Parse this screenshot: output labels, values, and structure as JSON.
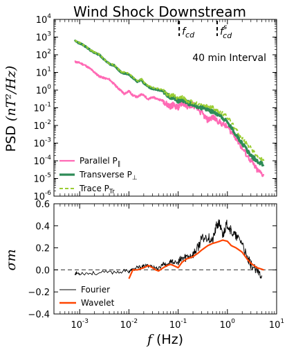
{
  "title": "Wind Shock Downstream",
  "colors": {
    "parallel": "#ff69b4",
    "transverse": "#2e8b57",
    "trace": "#9acd32",
    "fourier": "#000000",
    "wavelet": "#ff4500",
    "zero_line": "#555555"
  },
  "top_panel": {
    "ylabel": "PSD (nT²/Hz)",
    "ylabel_prefix": "PSD ",
    "ylabel_math": "(nT²/Hz)",
    "annotation": "40 min Interval",
    "markers": [
      {
        "label": "f_cd",
        "text": "f",
        "sub": "cd",
        "sup": "",
        "x": 0.105
      },
      {
        "label": "f^s_cd",
        "text": "f",
        "sub": "cd",
        "sup": "s",
        "x": 0.62
      }
    ],
    "yticks": [
      {
        "base": "10",
        "exp": "4"
      },
      {
        "base": "10",
        "exp": "3"
      },
      {
        "base": "10",
        "exp": "2"
      },
      {
        "base": "10",
        "exp": "1"
      },
      {
        "base": "10",
        "exp": "0"
      },
      {
        "base": "10",
        "exp": "-1"
      },
      {
        "base": "10",
        "exp": "-2"
      },
      {
        "base": "10",
        "exp": "-3"
      },
      {
        "base": "10",
        "exp": "-4"
      },
      {
        "base": "10",
        "exp": "-5"
      },
      {
        "base": "10",
        "exp": "-6"
      }
    ],
    "legend": [
      {
        "key": "parallel",
        "label": "Parallel P",
        "sub": "∥"
      },
      {
        "key": "transverse",
        "label": "Transverse P",
        "sub": "⊥"
      },
      {
        "key": "trace",
        "label": "Trace P",
        "sub": "Tr"
      }
    ]
  },
  "bottom_panel": {
    "ylabel": "σm",
    "yticks": [
      "0.6",
      "0.4",
      "0.2",
      "0.0",
      "−0.2",
      "−0.4"
    ],
    "legend": [
      {
        "key": "fourier",
        "label": "Fourier"
      },
      {
        "key": "wavelet",
        "label": "Wavelet"
      }
    ]
  },
  "xaxis": {
    "label_math": "f",
    "label_text": " (Hz)",
    "xticks": [
      {
        "base": "10",
        "exp": "-3"
      },
      {
        "base": "10",
        "exp": "-2"
      },
      {
        "base": "10",
        "exp": "-1"
      },
      {
        "base": "10",
        "exp": "0"
      },
      {
        "base": "10",
        "exp": "1"
      }
    ]
  },
  "chart_data": [
    {
      "type": "line",
      "title": "Wind Shock Downstream",
      "xlabel": "f (Hz)",
      "ylabel": "PSD (nT²/Hz)",
      "xscale": "log",
      "yscale": "log",
      "xlim": [
        0.0003,
        10
      ],
      "ylim": [
        1e-06,
        10000
      ],
      "legend_position": "lower-left",
      "series": [
        {
          "name": "Parallel P∥",
          "x": [
            0.0008,
            0.001,
            0.0013,
            0.0017,
            0.002,
            0.0025,
            0.003,
            0.004,
            0.005,
            0.006,
            0.007,
            0.008,
            0.01,
            0.012,
            0.015,
            0.018,
            0.02,
            0.025,
            0.03,
            0.04,
            0.05,
            0.06,
            0.07,
            0.08,
            0.1,
            0.12,
            0.15,
            0.2,
            0.3,
            0.4,
            0.5,
            0.7,
            1.0,
            1.5,
            2.0,
            3.0,
            4.0,
            5.5
          ],
          "y": [
            40,
            35,
            25,
            15,
            10,
            6,
            5,
            4,
            2.2,
            1.3,
            0.9,
            0.6,
            0.9,
            0.5,
            0.4,
            0.6,
            0.5,
            0.3,
            0.4,
            0.3,
            0.25,
            0.15,
            0.12,
            0.15,
            0.1,
            0.2,
            0.12,
            0.15,
            0.05,
            0.02,
            0.03,
            0.015,
            0.008,
            0.002,
            0.0005,
            0.0001,
            3e-05,
            1.5e-05
          ]
        },
        {
          "name": "Transverse P⊥",
          "x": [
            0.0008,
            0.001,
            0.0013,
            0.0017,
            0.002,
            0.0025,
            0.003,
            0.004,
            0.005,
            0.006,
            0.007,
            0.008,
            0.01,
            0.012,
            0.015,
            0.018,
            0.02,
            0.025,
            0.03,
            0.04,
            0.05,
            0.06,
            0.07,
            0.08,
            0.1,
            0.12,
            0.15,
            0.2,
            0.3,
            0.4,
            0.5,
            0.7,
            1.0,
            1.5,
            2.0,
            3.0,
            4.0,
            5.5
          ],
          "y": [
            600,
            450,
            300,
            170,
            130,
            100,
            60,
            30,
            25,
            15,
            10,
            9,
            8,
            5,
            3,
            4,
            2.5,
            1.5,
            1.2,
            1.0,
            0.9,
            0.5,
            0.4,
            0.4,
            0.25,
            0.3,
            0.2,
            0.15,
            0.1,
            0.08,
            0.06,
            0.04,
            0.015,
            0.003,
            0.001,
            0.0002,
            0.0001,
            6e-05
          ]
        },
        {
          "name": "Trace PTr",
          "x": [
            0.0008,
            0.001,
            0.0013,
            0.0017,
            0.002,
            0.0025,
            0.003,
            0.004,
            0.005,
            0.006,
            0.007,
            0.008,
            0.01,
            0.012,
            0.015,
            0.018,
            0.02,
            0.025,
            0.03,
            0.04,
            0.05,
            0.06,
            0.07,
            0.08,
            0.1,
            0.12,
            0.15,
            0.2,
            0.3,
            0.4,
            0.5,
            0.7,
            1.0,
            1.5,
            2.0,
            3.0,
            4.0,
            5.5
          ],
          "y": [
            620,
            470,
            310,
            180,
            140,
            105,
            62,
            32,
            27,
            16,
            11,
            10,
            9,
            5.5,
            3.3,
            4.4,
            2.8,
            1.7,
            1.4,
            1.2,
            1.0,
            0.6,
            0.5,
            0.5,
            0.3,
            0.4,
            0.25,
            0.2,
            0.14,
            0.12,
            0.1,
            0.06,
            0.03,
            0.006,
            0.002,
            0.0005,
            0.0002,
            0.0001
          ]
        }
      ]
    },
    {
      "type": "line",
      "xlabel": "f (Hz)",
      "ylabel": "σm",
      "xscale": "log",
      "xlim": [
        0.0003,
        10
      ],
      "ylim": [
        -0.4,
        0.6
      ],
      "reference_line": 0.0,
      "legend_position": "lower-left",
      "series": [
        {
          "name": "Fourier",
          "x": [
            0.0008,
            0.001,
            0.002,
            0.005,
            0.01,
            0.012,
            0.015,
            0.02,
            0.025,
            0.03,
            0.04,
            0.05,
            0.06,
            0.07,
            0.08,
            0.1,
            0.12,
            0.15,
            0.2,
            0.25,
            0.3,
            0.4,
            0.5,
            0.6,
            0.7,
            0.8,
            0.9,
            1.0,
            1.2,
            1.5,
            2.0,
            2.5,
            3.0,
            4.0,
            5.0
          ],
          "y": [
            -0.03,
            -0.03,
            -0.03,
            -0.02,
            -0.01,
            0.0,
            0.02,
            0.03,
            0.04,
            0.03,
            0.01,
            0.06,
            0.04,
            0.08,
            0.07,
            0.06,
            0.1,
            0.12,
            0.14,
            0.2,
            0.28,
            0.3,
            0.26,
            0.4,
            0.42,
            0.3,
            0.38,
            0.42,
            0.35,
            0.3,
            0.25,
            0.1,
            0.05,
            -0.02,
            -0.05
          ]
        },
        {
          "name": "Wavelet",
          "x": [
            0.01,
            0.012,
            0.015,
            0.02,
            0.025,
            0.03,
            0.035,
            0.04,
            0.05,
            0.06,
            0.07,
            0.08,
            0.1,
            0.12,
            0.15,
            0.2,
            0.25,
            0.3,
            0.4,
            0.5,
            0.6,
            0.7,
            0.8,
            1.0,
            1.2,
            1.5,
            2.0,
            2.5,
            3.0,
            4.0,
            5.5
          ],
          "y": [
            -0.08,
            0.0,
            0.0,
            0.02,
            0.04,
            0.02,
            0.0,
            -0.01,
            0.02,
            0.04,
            0.05,
            0.04,
            0.02,
            0.07,
            0.1,
            0.12,
            0.15,
            0.18,
            0.22,
            0.24,
            0.25,
            0.26,
            0.27,
            0.26,
            0.22,
            0.2,
            0.16,
            0.1,
            0.06,
            0.02,
            0.0
          ]
        }
      ]
    }
  ]
}
